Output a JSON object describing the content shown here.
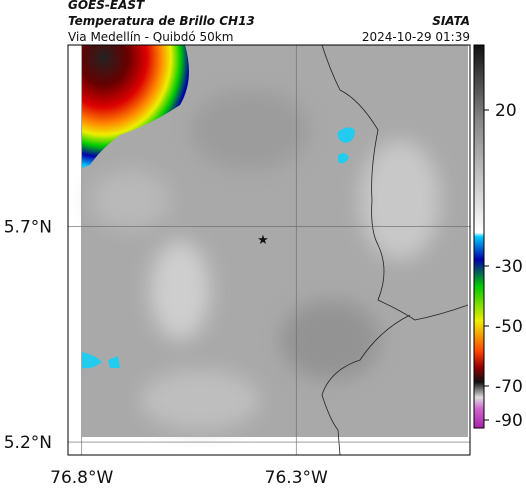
{
  "header": {
    "source": "GOES-EAST",
    "title": "Temperatura de Brillo CH13",
    "subtitle": "Via Medellín - Quibdó 50km",
    "org": "SIATA",
    "timestamp": "2024-10-29 01:39"
  },
  "map": {
    "xlim": [
      -76.832,
      -75.895
    ],
    "ylim": [
      5.17,
      6.12
    ],
    "xticks": [
      {
        "value": -76.8,
        "label": "76.8°W"
      },
      {
        "value": -76.3,
        "label": "76.3°W"
      }
    ],
    "yticks": [
      {
        "value": 5.7,
        "label": "5.7°N"
      },
      {
        "value": 5.2,
        "label": "5.2°N"
      }
    ]
  },
  "colorbar": {
    "ticks": [
      20,
      -30,
      -50,
      -70,
      -90
    ]
  }
}
